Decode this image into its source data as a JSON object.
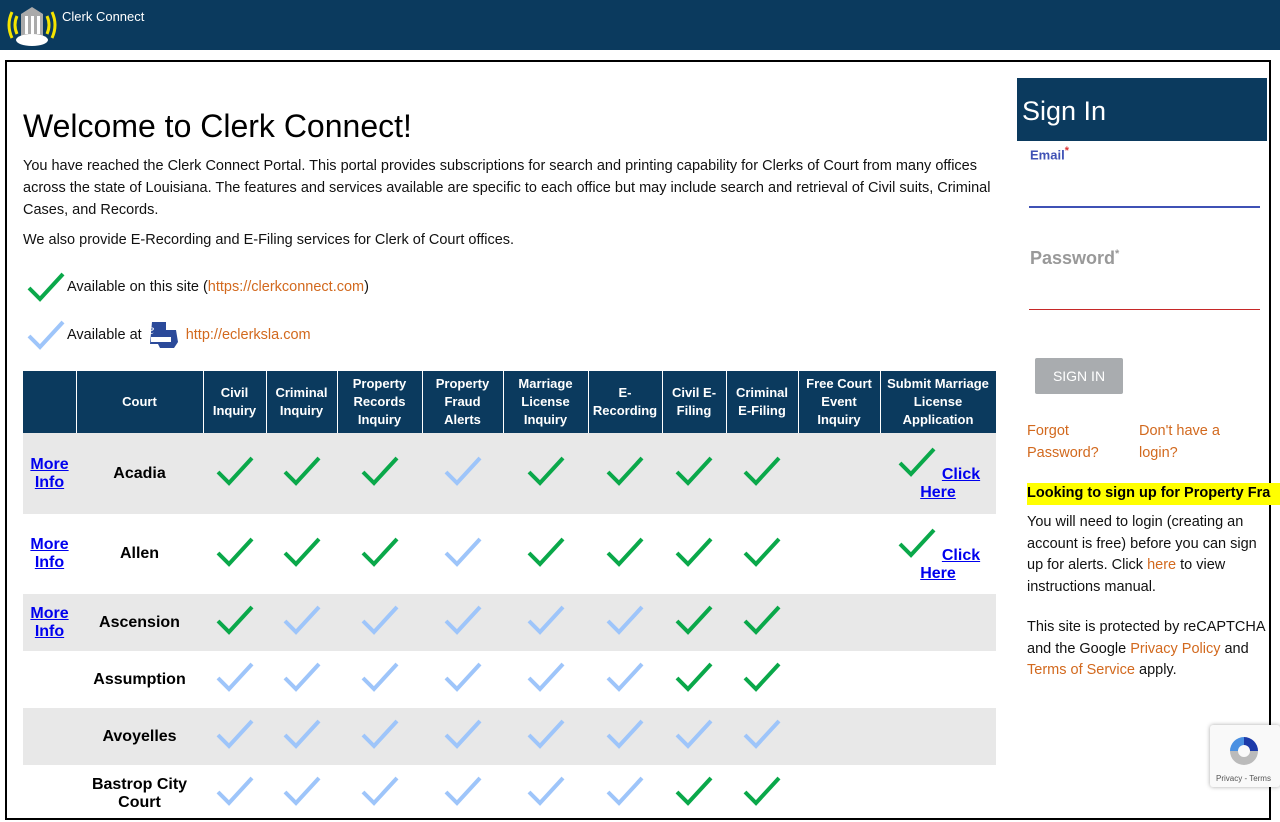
{
  "header": {
    "app_title": "Clerk Connect"
  },
  "main": {
    "title": "Welcome to Clerk Connect!",
    "intro_paragraphs": [
      "You have reached the Clerk Connect Portal. This portal provides subscriptions for search and printing capability for Clerks of Court from many offices across the state of Louisiana. The features and services available are specific to each office but may include search and retrieval of Civil suits, Criminal Cases, and Records.",
      "We also provide E-Recording and E-Filing services for Clerk of Court offices."
    ],
    "legend": {
      "site_prefix": "Available on this site (",
      "site_link": "https://clerkconnect.com",
      "site_suffix": ")",
      "external_prefix": "Available at",
      "external_logo_text": "eClerks LA",
      "external_link": "http://eclerksla.com"
    },
    "colors": {
      "available_here": "#0aa84a",
      "available_external": "#9ec5fa",
      "header_bg": "#0b3a5e",
      "link_orange": "#d2691e"
    },
    "table": {
      "columns": [
        "",
        "Court",
        "Civil Inquiry",
        "Criminal Inquiry",
        "Property Records Inquiry",
        "Property Fraud Alerts",
        "Marriage License Inquiry",
        "E-Recording",
        "Civil E-Filing",
        "Criminal E-Filing",
        "Free Court Event Inquiry",
        "Submit Marriage License Application"
      ],
      "more_info_label": "More Info",
      "click_here_label": "Click Here",
      "rows": [
        {
          "court": "Acadia",
          "more_info": true,
          "checks": [
            "green",
            "green",
            "green",
            "blue",
            "green",
            "green",
            "green",
            "green",
            ""
          ],
          "submit": "green"
        },
        {
          "court": "Allen",
          "more_info": true,
          "checks": [
            "green",
            "green",
            "green",
            "blue",
            "green",
            "green",
            "green",
            "green",
            ""
          ],
          "submit": "green"
        },
        {
          "court": "Ascension",
          "more_info": true,
          "checks": [
            "green",
            "blue",
            "blue",
            "blue",
            "blue",
            "blue",
            "green",
            "green",
            ""
          ],
          "submit": ""
        },
        {
          "court": "Assumption",
          "more_info": false,
          "checks": [
            "blue",
            "blue",
            "blue",
            "blue",
            "blue",
            "blue",
            "green",
            "green",
            ""
          ],
          "submit": ""
        },
        {
          "court": "Avoyelles",
          "more_info": false,
          "checks": [
            "blue",
            "blue",
            "blue",
            "blue",
            "blue",
            "blue",
            "blue",
            "blue",
            ""
          ],
          "submit": ""
        },
        {
          "court": "Bastrop City Court",
          "more_info": false,
          "checks": [
            "blue",
            "blue",
            "blue",
            "blue",
            "blue",
            "blue",
            "green",
            "green",
            ""
          ],
          "submit": ""
        }
      ]
    }
  },
  "signin": {
    "title": "Sign In",
    "email_label": "Email",
    "password_label": "Password",
    "required_mark": "*",
    "email_value": "",
    "password_value": "",
    "button": "SIGN IN",
    "forgot": [
      "Forgot",
      "Password?"
    ],
    "no_login": [
      "Don't have a",
      "login?"
    ],
    "notice_highlight": "Looking to sign up for Property Fra",
    "notice_text_1": "You will need to login (creating an account is free) before you can sign up for alerts. Click ",
    "notice_link": "here",
    "notice_text_2": " to view instructions manual.",
    "recaptcha_1": "This site is protected by reCAPTCHA and the Google ",
    "privacy_link": "Privacy Policy",
    "recaptcha_and": " and ",
    "terms_link": "Terms of Service",
    "recaptcha_2": " apply.",
    "badge_text": "Privacy - Terms"
  }
}
